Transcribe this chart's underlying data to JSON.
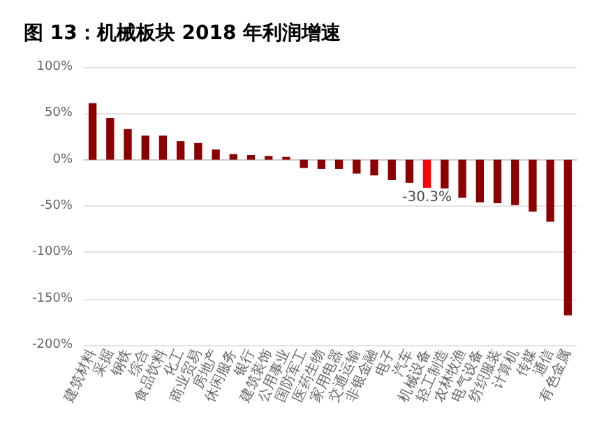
{
  "chart_data": {
    "type": "bar",
    "title": "图 13：机械板块 2018 年利润增速",
    "categories": [
      "建筑材料",
      "采掘",
      "钢铁",
      "综合",
      "食品饮料",
      "化工",
      "商业贸易",
      "房地产",
      "休闲服务",
      "银行",
      "建筑装饰",
      "公用事业",
      "国防军工",
      "医药生物",
      "家用电器",
      "交通运输",
      "非银金融",
      "电子",
      "汽车",
      "机械设备",
      "轻工制造",
      "农林牧渔",
      "电气设备",
      "纺织服装",
      "计算机",
      "传媒",
      "通信",
      "有色金属"
    ],
    "values": [
      61,
      45,
      33,
      26,
      26,
      20,
      18,
      11,
      6,
      5,
      4,
      3,
      -9,
      -10,
      -10,
      -15,
      -17,
      -22,
      -25,
      -30.3,
      -31,
      -41,
      -46,
      -47,
      -49,
      -56,
      -67,
      -168
    ],
    "colors": [
      "#8b0000",
      "#8b0000",
      "#8b0000",
      "#8b0000",
      "#8b0000",
      "#8b0000",
      "#8b0000",
      "#8b0000",
      "#8b0000",
      "#8b0000",
      "#8b0000",
      "#8b0000",
      "#8b0000",
      "#8b0000",
      "#8b0000",
      "#8b0000",
      "#8b0000",
      "#8b0000",
      "#8b0000",
      "#ff0000",
      "#8b0000",
      "#8b0000",
      "#8b0000",
      "#8b0000",
      "#8b0000",
      "#8b0000",
      "#8b0000",
      "#8b0000"
    ],
    "value_labels": [
      null,
      null,
      null,
      null,
      null,
      null,
      null,
      null,
      null,
      null,
      null,
      null,
      null,
      null,
      null,
      null,
      null,
      null,
      null,
      "-30.3%",
      null,
      null,
      null,
      null,
      null,
      null,
      null,
      null
    ],
    "ylim": [
      -200,
      100
    ],
    "yticks": [
      {
        "value": -200,
        "label": "-200%"
      },
      {
        "value": -150,
        "label": "-150%"
      },
      {
        "value": -100,
        "label": "-100%"
      },
      {
        "value": -50,
        "label": "-50%"
      },
      {
        "value": 0,
        "label": "0%"
      },
      {
        "value": 50,
        "label": "50%"
      },
      {
        "value": 100,
        "label": "100%"
      }
    ],
    "grid": "y"
  }
}
